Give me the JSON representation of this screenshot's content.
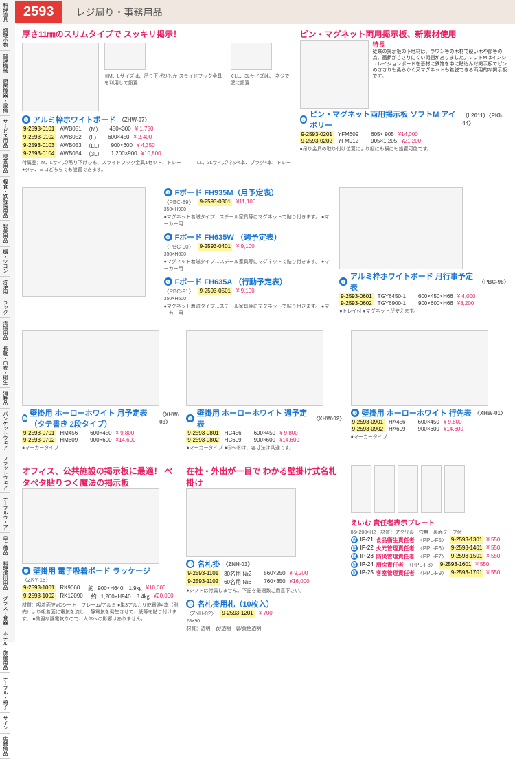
{
  "header": {
    "page_num": "2593",
    "title": "レジ周り・事務用品"
  },
  "sidebar": {
    "items": [
      "料理道具",
      "調理小物",
      "調理機械",
      "厨房機器・設備",
      "サービス用品",
      "喫茶用品",
      "軽食・鉄板焼用品",
      "製菓用品",
      "棚・ワゴン",
      "洗浄用",
      "ラック",
      "清掃用品",
      "長靴・白衣・衛生",
      "消耗品",
      "バンケットウェア",
      "フラットウェア",
      "テーブルウェア",
      "卓上備品",
      "料理演出用品",
      "グラス・食器",
      "ホテル・旅館用品",
      "テーブル・椅子",
      "サイン",
      "店舗備品"
    ]
  },
  "p1": {
    "promo": "厚さ11㎜のスリムタイプで\nスッキリ掲示！",
    "title": "アルミ枠ホワイトボード",
    "code": "〈ZHW-07〉",
    "rows": [
      {
        "c": "9-2593-0101",
        "m": "AWB051",
        "s": "（M）",
        "d": "450×300",
        "p": "¥ 1,750"
      },
      {
        "c": "9-2593-0102",
        "m": "AWB052",
        "s": "（L）",
        "d": "600×450",
        "p": "¥ 2,400"
      },
      {
        "c": "9-2593-0103",
        "m": "AWB053",
        "s": "（LL）",
        "d": "900×600",
        "p": "¥ 4,350"
      },
      {
        "c": "9-2593-0104",
        "m": "AWB054",
        "s": "（3L）",
        "d": "1,200×900",
        "p": "¥10,800"
      }
    ],
    "note": "付属品：M、Lサイズ/吊り下げひも、スライドフック金具1セット、トレー\n　　　LL、3Lサイズ/ネジ4本、プラグ4本、トレー\n●タテ、ヨコどちらでも設置できます。",
    "cap1": "※M、Lサイズは、吊り下げひもか\nスライドフック金具を利用して設置",
    "cap2": "※LL、3Lサイズは、\nネジで壁に設置"
  },
  "p2": {
    "promo": "ピン・マグネット両用掲示板、新素材使用",
    "feature": "特長",
    "desc": "従来の掲示板の下地材は、ラワン等の木材で硬い木や節等の為、画鋲がささりにくい問題がありました。ソフトMはインシュレイションボードを基材に鉄箔を中に貼込んだ掲示板でピンのささりも柔らかく又マグネットも着脱できる両用的な掲示板です。",
    "title": "ピン・マグネット両用掲示板\nソフトM アイボリー",
    "code": "（L2011）〈PKI-44〉",
    "rows": [
      {
        "c": "9-2593-0201",
        "m": "YFM609",
        "d": "605× 905",
        "p": "¥14,000"
      },
      {
        "c": "9-2593-0202",
        "m": "YFM912",
        "d": "905×1,205",
        "p": "¥21,200"
      }
    ],
    "note": "●吊り金具の取り付け位置により縦にも横にも設置可能です。"
  },
  "p3": {
    "title": "Fボード FH935M（月予定表）",
    "code": "〈PBC-89〉",
    "hc": "9-2593-0301",
    "price": "¥11,100",
    "size": "350×H900",
    "note": "●マグネット着磁タイプ…スチール家具等にマグネットで貼り付きます。\n●マーカー用"
  },
  "p4": {
    "title": "Fボード FH635W\n（週予定表）",
    "code": "〈PBC-90〉",
    "hc": "9-2593-0401",
    "price": "¥ 9,100",
    "size": "350×H600",
    "note": "●マグネット着磁タイプ…スチール家具等にマグネットで貼り付きます。\n●マーカー用"
  },
  "p5": {
    "title": "Fボード FH635A\n（行動予定表）",
    "code": "〈PBC-91〉",
    "hc": "9-2593-0501",
    "price": "¥ 9,100",
    "size": "350×H600",
    "note": "●マグネット着磁タイプ…スチール家具等にマグネットで貼り付きます。\n●マーカー用"
  },
  "p6": {
    "title": "アルミ枠ホワイトボード\n月行事予定表",
    "code": "〈PBC-98〉",
    "rows": [
      {
        "c": "9-2593-0601",
        "m": "TGY6450-1",
        "d": "600×450×H66",
        "p": "¥ 4,000"
      },
      {
        "c": "9-2593-0602",
        "m": "TGY6900-1",
        "d": "900×600×H66",
        "p": "¥8,200"
      }
    ],
    "note": "●トレイ付\n●マグネットが使えます。"
  },
  "p7": {
    "title": "壁掛用 ホーローホワイト 月予定表\n（タテ書き 2段タイプ）",
    "code": "〈XHW-03〉",
    "rows": [
      {
        "c": "9-2593-0701",
        "m": "HM456",
        "d": "600×450",
        "p": "¥ 9,800"
      },
      {
        "c": "9-2593-0702",
        "m": "HM609",
        "d": "900×600",
        "p": "¥14,600"
      }
    ],
    "note": "●マーカータイプ"
  },
  "p8": {
    "title": "壁掛用 ホーローホワイト 週予定表",
    "code": "〈XHW-02〉",
    "rows": [
      {
        "c": "9-2593-0801",
        "m": "HC456",
        "d": "600×450",
        "p": "¥ 9,800"
      },
      {
        "c": "9-2593-0802",
        "m": "HC609",
        "d": "900×600",
        "p": "¥14,600"
      }
    ],
    "note": "●マーカータイプ\n●⑥〜⑧は、各寸法は共通です。"
  },
  "p9": {
    "title": "壁掛用 ホーローホワイト 行先表",
    "code": "〈XHW-01〉",
    "rows": [
      {
        "c": "9-2593-0901",
        "m": "HA456",
        "d": "600×450",
        "p": "¥ 9,800"
      },
      {
        "c": "9-2593-0902",
        "m": "HA609",
        "d": "900×600",
        "p": "¥14,600"
      }
    ],
    "note": "●マーカータイプ"
  },
  "p10": {
    "promo": "オフィス、公共施設の掲示板に最適！\nペタペタ貼りつく魔法の掲示板",
    "title": "壁掛用 電子吸着ボード ラッケージ",
    "code": "〈ZKY-16〉",
    "rows": [
      {
        "c": "9-2593-1001",
        "m": "RK9060",
        "sp": "約",
        "d": "900×H640　1.9㎏",
        "p": "¥10,000"
      },
      {
        "c": "9-2593-1002",
        "m": "RK12090",
        "sp": "約",
        "d": "1,200×H940　3.4㎏",
        "p": "¥20,000"
      }
    ],
    "note": "材質：吸着面/PVCシート　フレーム/アルミ\n●単3アルカリ乾電池4本（別売）より吸着面に電気を流し\n　静電気を発生させて、紙等を貼り付けます。\n●微弱な静電気なので、人体への影響はありません。"
  },
  "p11": {
    "promo": "在社・外出が一目で\nわかる壁掛け式名札掛け",
    "title": "名札掛",
    "code": "〈ZNH-03〉",
    "rows": [
      {
        "c": "9-2593-1101",
        "m": "30名用 №2",
        "d": "560×250",
        "p": "¥ 9,200"
      },
      {
        "c": "9-2593-1102",
        "m": "60名用 №6",
        "d": "760×350",
        "p": "¥16,000"
      }
    ],
    "note": "●シフトは付属しません。下記を最適数ご用意下さい。"
  },
  "p12": {
    "title": "名札掛用札（10枚入）",
    "code": "〈ZNH-02〉",
    "hc": "9-2593-1201",
    "price": "¥ 700",
    "size": "28×90",
    "note": "材質：透明　表/透明　裏/黄色透明"
  },
  "plates": {
    "title": "えいむ 責任者表示プレート",
    "spec": "85×200×H2　材質：アクリル　穴無・裏面テープ付",
    "rows": [
      {
        "n": "⓭",
        "m": "IP-21",
        "name": "食品衛生責任者",
        "code": "〈PPL-F5〉",
        "hc": "9-2593-1301",
        "p": "¥ 550"
      },
      {
        "n": "⓮",
        "m": "IP-22",
        "name": "火元管理責任者",
        "code": "〈PPL-F6〉",
        "hc": "9-2593-1401",
        "p": "¥ 550"
      },
      {
        "n": "⓯",
        "m": "IP-23",
        "name": "防災管理責任者",
        "code": "〈PPL-F7〉",
        "hc": "9-2593-1501",
        "p": "¥ 550"
      },
      {
        "n": "⓰",
        "m": "IP-24",
        "name": "厨房責任者",
        "code": "〈PPL-F8〉",
        "hc": "9-2593-1601",
        "p": "¥ 550"
      },
      {
        "n": "⓱",
        "m": "IP-25",
        "name": "客室管理責任者",
        "code": "〈PPL-F9〉",
        "hc": "9-2593-1701",
        "p": "¥ 550"
      }
    ]
  }
}
